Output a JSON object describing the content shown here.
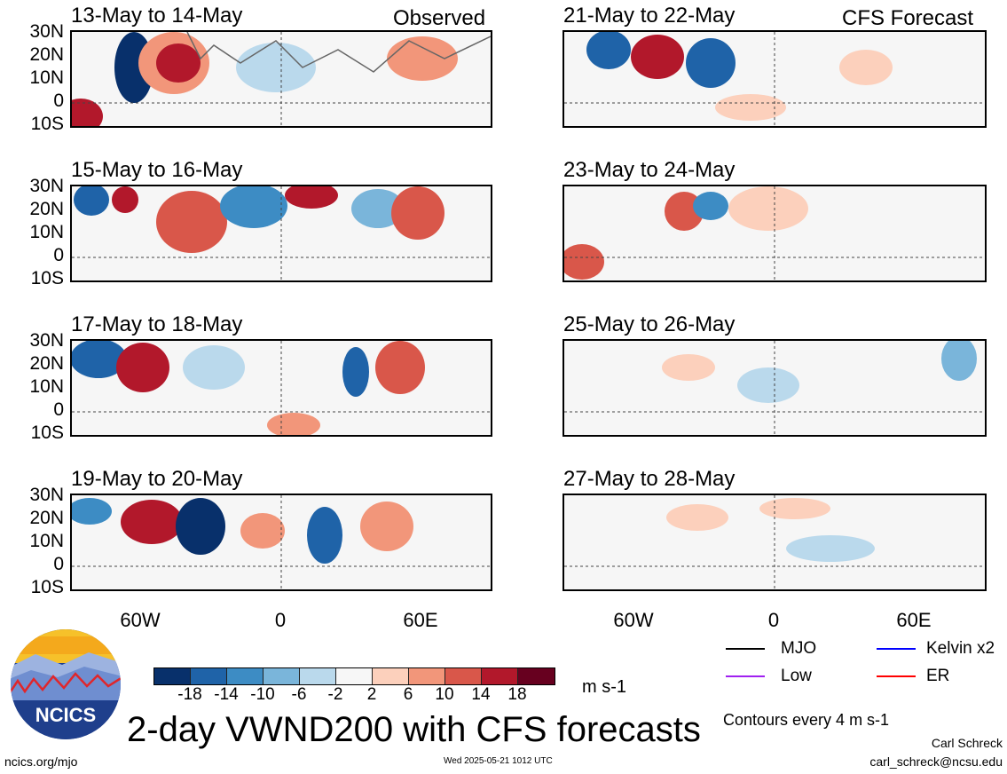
{
  "panels": {
    "observed_label": "Observed",
    "forecast_label": "CFS Forecast",
    "left": [
      {
        "title": "13-May to 14-May"
      },
      {
        "title": "15-May to 16-May"
      },
      {
        "title": "17-May to 18-May"
      },
      {
        "title": "19-May to 20-May"
      }
    ],
    "right": [
      {
        "title": "21-May to 22-May"
      },
      {
        "title": "23-May to 24-May"
      },
      {
        "title": "25-May to 26-May"
      },
      {
        "title": "27-May to 28-May"
      }
    ]
  },
  "axes": {
    "lat_ticks": [
      "30N",
      "20N",
      "10N",
      "0",
      "10S"
    ],
    "lon_ticks": [
      "60W",
      "0",
      "60E"
    ]
  },
  "colorbar": {
    "labels": [
      "-18",
      "-14",
      "-10",
      "-6",
      "-2",
      "2",
      "6",
      "10",
      "14",
      "18"
    ],
    "colors": [
      "#08306b",
      "#1f63a8",
      "#3d8cc4",
      "#7ab5da",
      "#bad9ec",
      "#f7f7f7",
      "#fcd0bc",
      "#f2967a",
      "#d9574a",
      "#b2182b",
      "#67001f"
    ],
    "unit": "m s-1"
  },
  "legend": {
    "mjo": {
      "label": "MJO",
      "color": "#000000"
    },
    "kelvin": {
      "label": "Kelvin x2",
      "color": "#0000ff"
    },
    "low": {
      "label": "Low",
      "color": "#a020f0"
    },
    "er": {
      "label": "ER",
      "color": "#ff0000"
    },
    "note": "Contours every 4 m s-1"
  },
  "footer": {
    "title": "2-day VWND200 with CFS forecasts",
    "logo_text": "NCICS",
    "url": "ncics.org/mjo",
    "timestamp": "Wed 2025-05-21 1012 UTC",
    "author": "Carl Schreck",
    "email": "carl_schreck@ncsu.edu"
  },
  "chart_data": {
    "type": "heatmap",
    "variable": "VWND200",
    "unit": "m s-1",
    "contour_interval": 4,
    "lat_range": [
      "10S",
      "30N"
    ],
    "lon_ticks": [
      "60W",
      "0",
      "60E"
    ],
    "color_levels": [
      -18,
      -14,
      -10,
      -6,
      -2,
      2,
      6,
      10,
      14,
      18
    ]
  }
}
